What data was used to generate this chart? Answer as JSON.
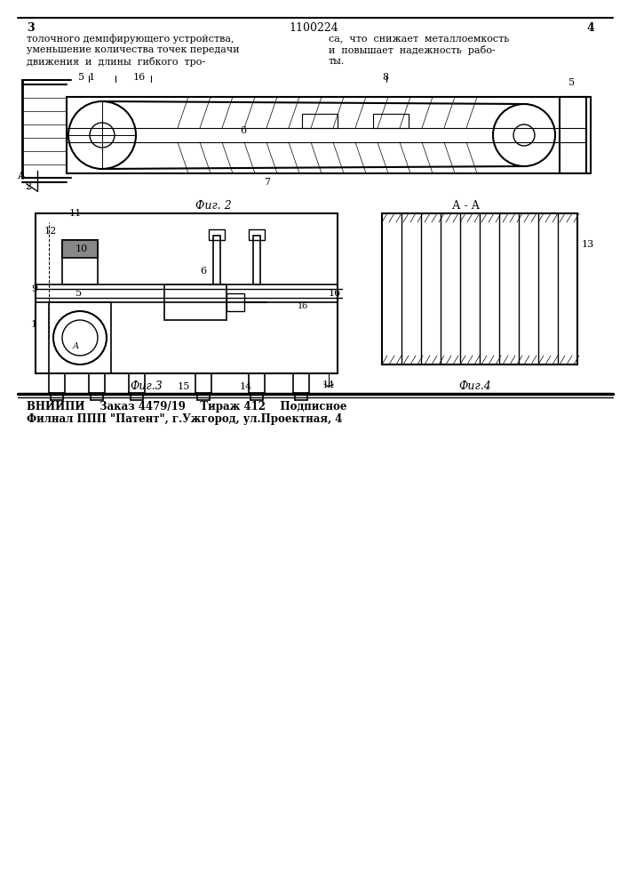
{
  "page_number_left": "3",
  "page_number_right": "4",
  "patent_number": "1100224",
  "header_text_left": [
    "толочного демпфирующего устройства,",
    "уменьшение количества точек передачи",
    "движения  и  длины  гибкого  тро-"
  ],
  "header_text_right": [
    "са,  что  снижает  металлоемкость",
    "и  повышает  надежность  рабо-",
    "ты."
  ],
  "fig2_label": "Фиг. 2",
  "fig3_label": "Фиг.3",
  "fig4_label": "Фиг.4",
  "footer_line1": "ВНИИПИ    Заказ 4479/19    Тираж 412    Подписное",
  "footer_line2": "Филнал ППП \"Патент\", г.Ужгород, ул.Проектная, 4",
  "bg_color": "#ffffff",
  "line_color": "#000000",
  "text_color": "#000000"
}
